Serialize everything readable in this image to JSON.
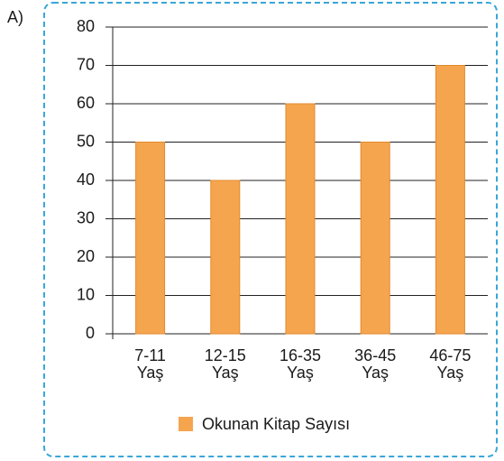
{
  "label": "A)",
  "chart_data": {
    "type": "bar",
    "categories": [
      [
        "7-11",
        "Yaş"
      ],
      [
        "12-15",
        "Yaş"
      ],
      [
        "16-35",
        "Yaş"
      ],
      [
        "36-45",
        "Yaş"
      ],
      [
        "46-75",
        "Yaş"
      ]
    ],
    "series": [
      {
        "name": "Okunan Kitap Sayısı",
        "color": "#f6a54f",
        "values": [
          50,
          40,
          60,
          50,
          70
        ]
      }
    ],
    "ylim": [
      0,
      80
    ],
    "yticks": [
      0,
      10,
      20,
      30,
      40,
      50,
      60,
      70,
      80
    ],
    "grid": true,
    "legend": "bottom"
  }
}
